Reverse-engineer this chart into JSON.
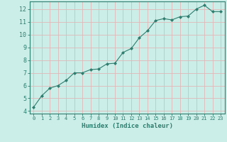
{
  "x": [
    0,
    1,
    2,
    3,
    4,
    5,
    6,
    7,
    8,
    9,
    10,
    11,
    12,
    13,
    14,
    15,
    16,
    17,
    18,
    19,
    20,
    21,
    22,
    23
  ],
  "y": [
    4.3,
    5.2,
    5.8,
    6.0,
    6.4,
    7.0,
    7.0,
    7.25,
    7.3,
    7.7,
    7.75,
    8.6,
    8.9,
    9.75,
    10.3,
    11.1,
    11.25,
    11.15,
    11.4,
    11.45,
    12.0,
    12.3,
    11.8,
    11.8
  ],
  "line_color": "#2e7d6e",
  "marker": "D",
  "marker_size": 2.0,
  "xlabel": "Humidex (Indice chaleur)",
  "xlim": [
    -0.5,
    23.5
  ],
  "ylim": [
    3.8,
    12.6
  ],
  "yticks": [
    4,
    5,
    6,
    7,
    8,
    9,
    10,
    11,
    12
  ],
  "xticks": [
    0,
    1,
    2,
    3,
    4,
    5,
    6,
    7,
    8,
    9,
    10,
    11,
    12,
    13,
    14,
    15,
    16,
    17,
    18,
    19,
    20,
    21,
    22,
    23
  ],
  "bg_color": "#cceee8",
  "grid_color": "#e0b8b8",
  "line_width": 0.8,
  "tick_color": "#2e7d6e",
  "label_color": "#2e7d6e",
  "spine_color": "#2e7d6e",
  "font_family": "monospace",
  "xlabel_fontsize": 6.5,
  "tick_fontsize_x": 5.0,
  "tick_fontsize_y": 6.0
}
